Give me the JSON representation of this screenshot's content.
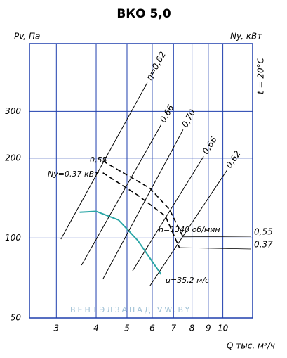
{
  "chart_data": {
    "type": "line",
    "title": "ВКО  5,0",
    "y_label": "Pv, Па",
    "y2_label": "Ny, кВт",
    "x_label": "Q тыс. м³/ч",
    "side_note": "t = 20°C",
    "watermark": "ВЕНТЭЛЗАПАД    VW.BY",
    "log_x": true,
    "log_y": true,
    "grid": true,
    "xlim": [
      2.47,
      12.4
    ],
    "ylim": [
      50,
      540
    ],
    "xticks": [
      3,
      4,
      5,
      6,
      7,
      8,
      9,
      10
    ],
    "yticks": [
      50,
      100,
      200,
      300
    ],
    "annotations": [
      "0,55",
      "Ny=0,37 кВт",
      "n=1340 об/мин",
      "u=35,2 м/с"
    ],
    "series": [
      {
        "color": "#2aa6a6",
        "dash": false,
        "x": [
          3.55,
          4.0,
          4.7,
          5.4,
          6.4
        ],
        "values": [
          125,
          126,
          117,
          98,
          73
        ]
      },
      {
        "name": "0,55",
        "color": "#000000",
        "dash": true,
        "x": [
          4.2,
          5.9,
          6.8,
          7.5
        ],
        "values": [
          195,
          154,
          128,
          101
        ]
      },
      {
        "name": "0,37",
        "color": "#000000",
        "dash": true,
        "x": [
          4.2,
          5.4,
          6.6,
          7.3
        ],
        "values": [
          176,
          145,
          121,
          92
        ]
      },
      {
        "name": "η=0,62",
        "color": "#000000",
        "dash": false,
        "x": [
          3.1,
          5.79
        ],
        "values": [
          99,
          385
        ]
      },
      {
        "name": "0,66",
        "color": "#000000",
        "dash": false,
        "x": [
          3.6,
          6.4
        ],
        "values": [
          79,
          267
        ]
      },
      {
        "name": "0,70",
        "color": "#000000",
        "dash": false,
        "x": [
          4.2,
          7.5
        ],
        "values": [
          70,
          256
        ]
      },
      {
        "name": "0,66",
        "color": "#000000",
        "dash": false,
        "x": [
          5.2,
          8.7
        ],
        "values": [
          75,
          203
        ]
      },
      {
        "name": "0,62",
        "color": "#000000",
        "dash": false,
        "x": [
          5.9,
          10.3
        ],
        "values": [
          66,
          180
        ]
      }
    ]
  }
}
